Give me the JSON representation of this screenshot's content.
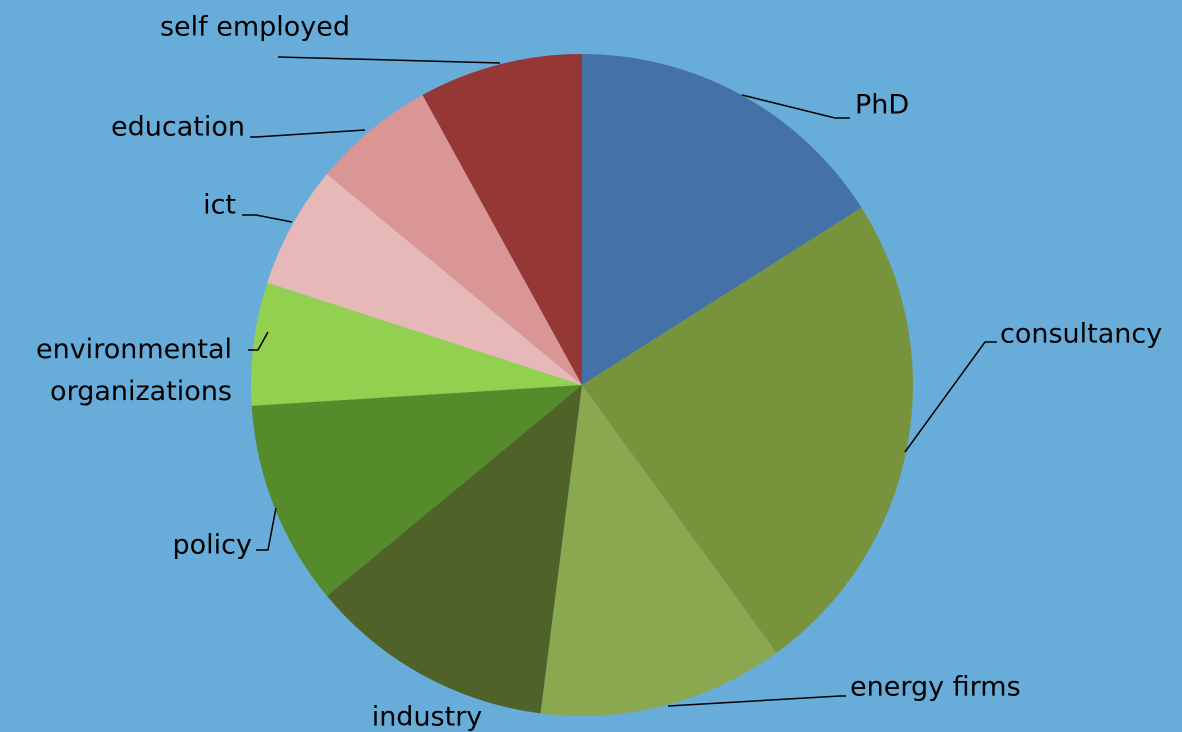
{
  "chart_data": {
    "type": "pie",
    "categories": [
      "PhD",
      "consultancy",
      "energy firms",
      "industry",
      "policy",
      "environmental organizations",
      "ict",
      "education",
      "self employed"
    ],
    "values": [
      16,
      24,
      12,
      12,
      10,
      6,
      6,
      6,
      8
    ],
    "colors": [
      "#4472a8",
      "#77933c",
      "#8aa84f",
      "#4f6228",
      "#558b2a",
      "#92d050",
      "#e6b9b8",
      "#d99694",
      "#953735"
    ]
  }
}
